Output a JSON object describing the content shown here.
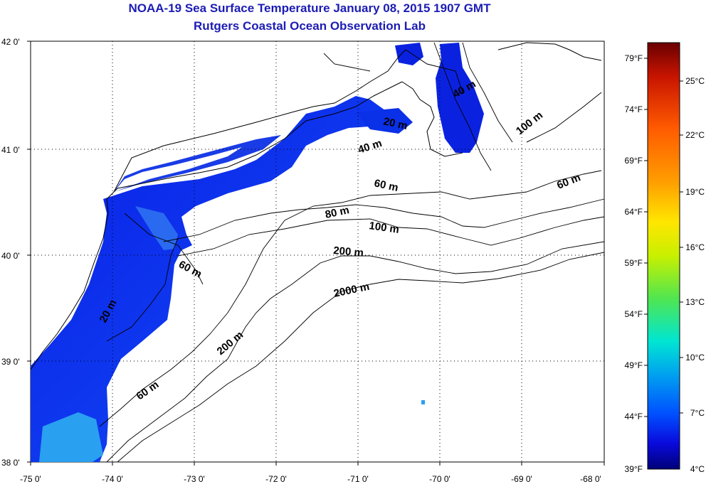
{
  "header": {
    "title": "NOAA-19 Sea Surface Temperature January 08, 2015 1907 GMT",
    "subtitle": "Rutgers Coastal Ocean Observation Lab"
  },
  "map": {
    "lat_labels": [
      "42 0'",
      "41 0'",
      "40 0'",
      "39 0'",
      "38 0'"
    ],
    "lon_labels": [
      "-75 0'",
      "-74 0'",
      "-73 0'",
      "-72 0'",
      "-71 0'",
      "-70 0'",
      "-69 0'",
      "-68 0'"
    ],
    "lat_range": [
      38,
      42
    ],
    "lon_range": [
      -75,
      -68
    ],
    "grid": true,
    "contour_labels": [
      "40 m",
      "100 m",
      "20 m",
      "40 m",
      "60 m",
      "60 m",
      "80 m",
      "100 m",
      "200 m",
      "60 m",
      "20 m",
      "2000 m",
      "200 m",
      "60 m"
    ]
  },
  "colorbar": {
    "fahrenheit": [
      "79°F",
      "74°F",
      "69°F",
      "64°F",
      "59°F",
      "54°F",
      "49°F",
      "44°F",
      "39°F"
    ],
    "celsius": [
      "25°C",
      "22°C",
      "19°C",
      "16°C",
      "13°C",
      "10°C",
      "7°C",
      "4°C"
    ],
    "colors": [
      "#6a0000",
      "#c81400",
      "#ff5a00",
      "#ffa000",
      "#ffe600",
      "#c8f000",
      "#50e650",
      "#00e6d2",
      "#00a0f0",
      "#0050ff",
      "#0a0adc",
      "#000078"
    ]
  }
}
